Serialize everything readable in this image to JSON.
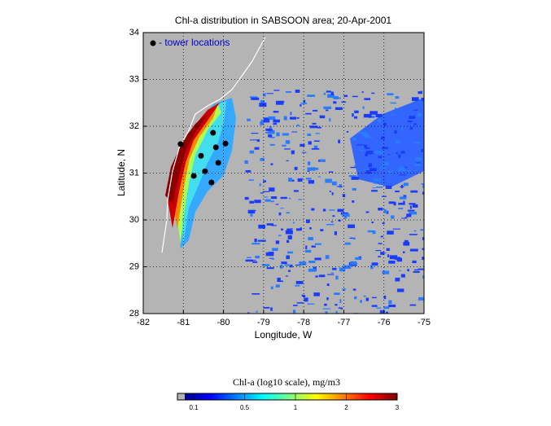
{
  "chart_data": {
    "type": "map",
    "title": "Chl-a distribution in SABSOON area; 20-Apr-2001",
    "x_label": "Longitude, W",
    "y_label": "Latitude, N",
    "xlim": [
      -82,
      -75
    ],
    "ylim": [
      28,
      34
    ],
    "xticks": [
      -82,
      -81,
      -80,
      -79,
      -78,
      -77,
      -76,
      -75
    ],
    "yticks": [
      28,
      29,
      30,
      31,
      32,
      33,
      34
    ],
    "grid": true,
    "series": [
      {
        "name": "- tower locations",
        "color": "#000000",
        "x": [
          -81.07,
          -80.26,
          -79.95,
          -80.19,
          -80.56,
          -80.13,
          -80.46,
          -80.74,
          -80.3
        ],
        "values": [
          31.62,
          31.86,
          31.63,
          31.55,
          31.37,
          31.22,
          31.04,
          30.94,
          30.8
        ]
      }
    ],
    "colorbar": {
      "title": "Chl-a (log10 scale), mg/m3",
      "ticks": [
        0.1,
        0.5,
        1,
        2,
        3
      ]
    }
  }
}
